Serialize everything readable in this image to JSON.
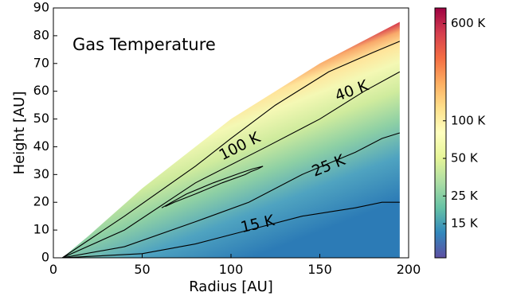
{
  "chart_data": {
    "type": "heatmap",
    "title": "Gas Temperature",
    "xlabel": "Radius [AU]",
    "ylabel": "Height [AU]",
    "xlim": [
      0,
      200
    ],
    "ylim": [
      0,
      90
    ],
    "xticks": [
      0,
      50,
      100,
      150,
      200
    ],
    "yticks": [
      0,
      10,
      20,
      30,
      40,
      50,
      60,
      70,
      80,
      90
    ],
    "grid": false,
    "colormap": "Spectral_r",
    "colorbar": {
      "scale": "log",
      "range_K": [
        8,
        800
      ],
      "ticks": [
        {
          "label": "600 K",
          "value": 600
        },
        {
          "label": "100 K",
          "value": 100
        },
        {
          "label": "50 K",
          "value": 50
        },
        {
          "label": "25 K",
          "value": 25
        },
        {
          "label": "15 K",
          "value": 15
        }
      ],
      "colors": [
        "#5e4fa2",
        "#3288bd",
        "#66c2a5",
        "#abdda4",
        "#e6f598",
        "#ffffbf",
        "#fee08b",
        "#fdae61",
        "#f46d43",
        "#d53e4f",
        "#9e0142"
      ]
    },
    "disk_surface": [
      [
        5,
        0
      ],
      [
        20,
        8
      ],
      [
        50,
        25
      ],
      [
        100,
        50
      ],
      [
        150,
        70
      ],
      [
        195,
        85
      ]
    ],
    "contours": [
      {
        "label": "15 K",
        "value": 15,
        "points": [
          [
            5,
            0
          ],
          [
            50,
            1.5
          ],
          [
            80,
            5
          ],
          [
            110,
            10
          ],
          [
            140,
            15
          ],
          [
            170,
            18
          ],
          [
            185,
            20
          ],
          [
            195,
            20
          ]
        ]
      },
      {
        "label": "25 K",
        "value": 25,
        "points": [
          [
            5,
            0
          ],
          [
            40,
            4
          ],
          [
            80,
            13
          ],
          [
            110,
            20
          ],
          [
            140,
            30
          ],
          [
            170,
            38
          ],
          [
            185,
            43
          ],
          [
            195,
            45
          ]
        ]
      },
      {
        "label": "40 K",
        "value": 40,
        "points": [
          [
            5,
            0
          ],
          [
            40,
            10
          ],
          [
            80,
            27
          ],
          [
            120,
            40
          ],
          [
            150,
            50
          ],
          [
            175,
            60
          ],
          [
            195,
            67
          ]
        ]
      },
      {
        "label": "100 K",
        "value": 100,
        "points": [
          [
            5,
            0
          ],
          [
            40,
            15
          ],
          [
            80,
            33
          ],
          [
            100,
            43
          ],
          [
            125,
            55
          ],
          [
            155,
            67
          ],
          [
            180,
            74
          ],
          [
            195,
            78
          ]
        ]
      }
    ],
    "loop_contour": [
      [
        61,
        18
      ],
      [
        75,
        23
      ],
      [
        90,
        27
      ],
      [
        105,
        30.5
      ],
      [
        112,
        32
      ],
      [
        115,
        32.5
      ],
      [
        118,
        33
      ],
      [
        115,
        32
      ],
      [
        111,
        31
      ],
      [
        108,
        30
      ],
      [
        95,
        27
      ],
      [
        80,
        23
      ],
      [
        68,
        20
      ],
      [
        63,
        18.5
      ]
    ]
  }
}
